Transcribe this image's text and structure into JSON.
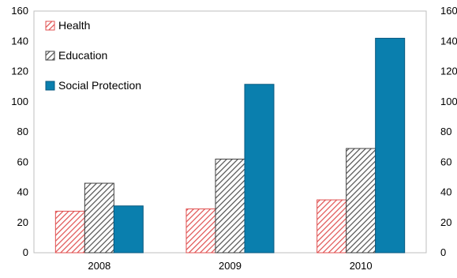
{
  "chart_data": {
    "type": "bar",
    "title": "",
    "xlabel": "",
    "ylabel": "",
    "categories": [
      "2008",
      "2009",
      "2010"
    ],
    "ylim": [
      0,
      160
    ],
    "yticks": [
      0,
      20,
      40,
      60,
      80,
      100,
      120,
      140,
      160
    ],
    "y_axis_duplicated_right": true,
    "grid": false,
    "legend_placement": "top-left",
    "series": [
      {
        "name": "Health",
        "values": [
          27.5,
          29,
          35
        ],
        "color": "#e05050",
        "fill": "diagonal-hatch"
      },
      {
        "name": "Education",
        "values": [
          46,
          62,
          69
        ],
        "color": "#606060",
        "fill": "diagonal-hatch"
      },
      {
        "name": "Social Protection",
        "values": [
          31,
          111.5,
          142
        ],
        "color": "#0a7fae",
        "fill": "solid"
      }
    ]
  }
}
